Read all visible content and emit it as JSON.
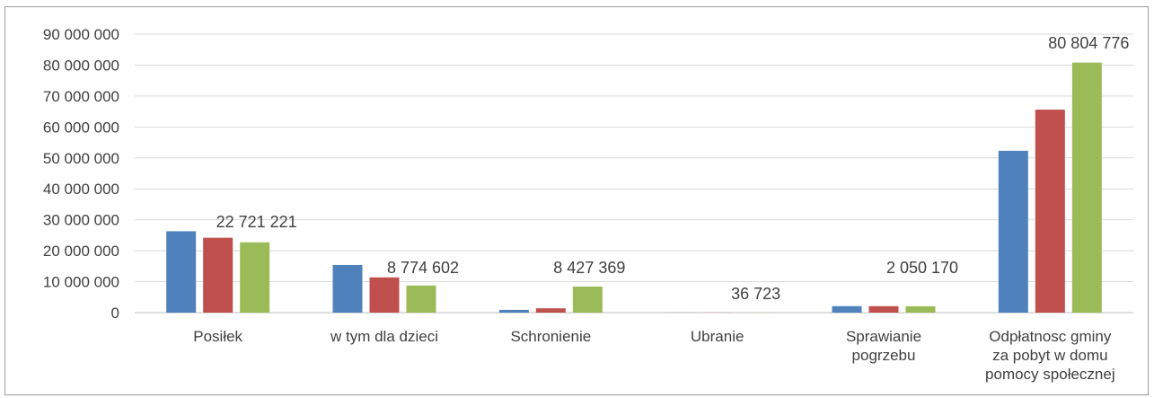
{
  "chart_data": {
    "type": "bar",
    "title": "",
    "categories": [
      [
        "Posiłek"
      ],
      [
        "w tym dla dzieci"
      ],
      [
        "Schronienie"
      ],
      [
        "Ubranie"
      ],
      [
        "Sprawianie",
        "pogrzebu"
      ],
      [
        "Odpłatnosc gminy",
        "za pobyt w domu",
        "pomocy społecznej"
      ]
    ],
    "series": [
      {
        "color": "#4F81BD",
        "values": [
          26300000,
          15400000,
          900000,
          30000,
          2100000,
          52300000
        ]
      },
      {
        "color": "#C0504D",
        "values": [
          24200000,
          11400000,
          1400000,
          32000,
          2100000,
          65600000
        ]
      },
      {
        "color": "#9BBB59",
        "values": [
          22721221,
          8774602,
          8427369,
          36723,
          2050170,
          80804776
        ]
      }
    ],
    "data_labels": [
      "22 721 221",
      "8 774 602",
      "8 427 369",
      "36 723",
      "2 050 170",
      "80 804 776"
    ],
    "y_ticks": [
      "0",
      "10 000 000",
      "20 000 000",
      "30 000 000",
      "40 000 000",
      "50 000 000",
      "60 000 000",
      "70 000 000",
      "80 000 000",
      "90 000 000"
    ],
    "ylim": [
      0,
      90000000
    ],
    "grid": true,
    "legend": "none"
  }
}
